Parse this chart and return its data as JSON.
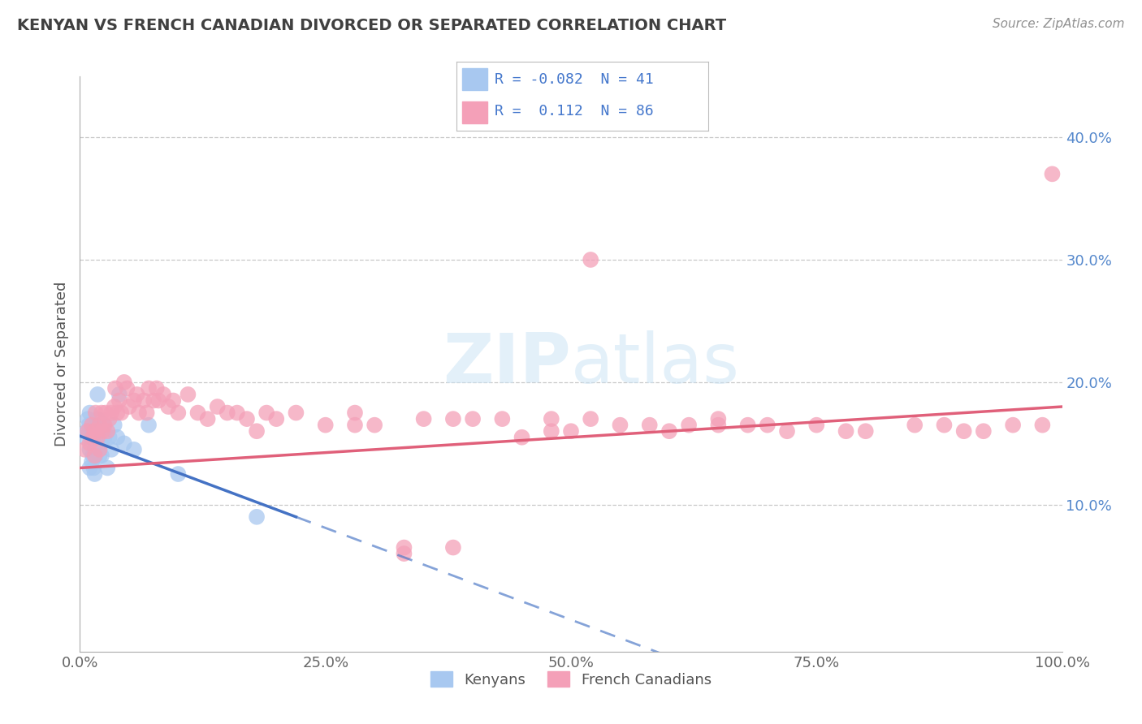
{
  "title": "KENYAN VS FRENCH CANADIAN DIVORCED OR SEPARATED CORRELATION CHART",
  "source": "Source: ZipAtlas.com",
  "ylabel": "Divorced or Separated",
  "watermark": "ZIPAtlas",
  "legend_blue_r": "-0.082",
  "legend_blue_n": "41",
  "legend_pink_r": "0.112",
  "legend_pink_n": "86",
  "xlim": [
    0,
    1.0
  ],
  "ylim": [
    -0.02,
    0.45
  ],
  "xticks": [
    0.0,
    0.25,
    0.5,
    0.75,
    1.0
  ],
  "xtick_labels": [
    "0.0%",
    "25.0%",
    "50.0%",
    "75.0%",
    "100.0%"
  ],
  "yticks": [
    0.1,
    0.2,
    0.3,
    0.4
  ],
  "ytick_labels": [
    "10.0%",
    "20.0%",
    "30.0%",
    "40.0%"
  ],
  "blue_color": "#a8c8f0",
  "pink_color": "#f4a0b8",
  "blue_line_color": "#4472c4",
  "pink_line_color": "#e0607a",
  "grid_color": "#c8c8c8",
  "title_color": "#404040",
  "source_color": "#909090",
  "background_color": "#ffffff",
  "blue_scatter_x": [
    0.005,
    0.007,
    0.008,
    0.009,
    0.01,
    0.01,
    0.01,
    0.011,
    0.012,
    0.012,
    0.013,
    0.013,
    0.014,
    0.014,
    0.015,
    0.015,
    0.015,
    0.016,
    0.016,
    0.017,
    0.018,
    0.018,
    0.019,
    0.02,
    0.02,
    0.021,
    0.022,
    0.023,
    0.024,
    0.025,
    0.028,
    0.03,
    0.032,
    0.035,
    0.038,
    0.04,
    0.045,
    0.055,
    0.07,
    0.1,
    0.18
  ],
  "blue_scatter_y": [
    0.155,
    0.16,
    0.17,
    0.165,
    0.13,
    0.145,
    0.175,
    0.155,
    0.135,
    0.16,
    0.14,
    0.155,
    0.13,
    0.16,
    0.125,
    0.145,
    0.165,
    0.14,
    0.155,
    0.165,
    0.17,
    0.19,
    0.155,
    0.14,
    0.165,
    0.15,
    0.14,
    0.155,
    0.165,
    0.155,
    0.13,
    0.155,
    0.145,
    0.165,
    0.155,
    0.19,
    0.15,
    0.145,
    0.165,
    0.125,
    0.09
  ],
  "pink_scatter_x": [
    0.005,
    0.008,
    0.01,
    0.012,
    0.013,
    0.015,
    0.015,
    0.016,
    0.018,
    0.02,
    0.02,
    0.022,
    0.023,
    0.025,
    0.026,
    0.028,
    0.03,
    0.032,
    0.035,
    0.036,
    0.038,
    0.04,
    0.042,
    0.045,
    0.048,
    0.05,
    0.055,
    0.058,
    0.06,
    0.065,
    0.068,
    0.07,
    0.075,
    0.078,
    0.08,
    0.085,
    0.09,
    0.095,
    0.1,
    0.11,
    0.12,
    0.13,
    0.14,
    0.15,
    0.16,
    0.17,
    0.18,
    0.19,
    0.2,
    0.22,
    0.25,
    0.28,
    0.3,
    0.33,
    0.35,
    0.38,
    0.4,
    0.43,
    0.45,
    0.48,
    0.5,
    0.52,
    0.55,
    0.58,
    0.6,
    0.62,
    0.65,
    0.68,
    0.7,
    0.72,
    0.75,
    0.78,
    0.8,
    0.85,
    0.88,
    0.9,
    0.92,
    0.95,
    0.98,
    0.99,
    0.48,
    0.65,
    0.52,
    0.38,
    0.33,
    0.28
  ],
  "pink_scatter_y": [
    0.145,
    0.16,
    0.15,
    0.165,
    0.155,
    0.14,
    0.16,
    0.175,
    0.155,
    0.145,
    0.165,
    0.175,
    0.16,
    0.165,
    0.175,
    0.16,
    0.17,
    0.175,
    0.18,
    0.195,
    0.175,
    0.185,
    0.175,
    0.2,
    0.195,
    0.18,
    0.185,
    0.19,
    0.175,
    0.185,
    0.175,
    0.195,
    0.185,
    0.195,
    0.185,
    0.19,
    0.18,
    0.185,
    0.175,
    0.19,
    0.175,
    0.17,
    0.18,
    0.175,
    0.175,
    0.17,
    0.16,
    0.175,
    0.17,
    0.175,
    0.165,
    0.175,
    0.165,
    0.06,
    0.17,
    0.065,
    0.17,
    0.17,
    0.155,
    0.17,
    0.16,
    0.17,
    0.165,
    0.165,
    0.16,
    0.165,
    0.17,
    0.165,
    0.165,
    0.16,
    0.165,
    0.16,
    0.16,
    0.165,
    0.165,
    0.16,
    0.16,
    0.165,
    0.165,
    0.37,
    0.16,
    0.165,
    0.3,
    0.17,
    0.065,
    0.165
  ]
}
